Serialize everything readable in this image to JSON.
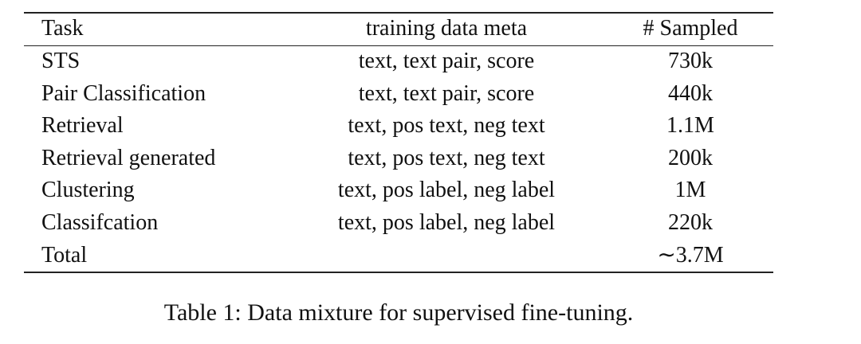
{
  "table": {
    "headers": [
      "Task",
      "training data meta",
      "# Sampled"
    ],
    "rows": [
      [
        "STS",
        "text, text pair, score",
        "730k"
      ],
      [
        "Pair Classification",
        "text, text pair, score",
        "440k"
      ],
      [
        "Retrieval",
        "text, pos text, neg text",
        "1.1M"
      ],
      [
        "Retrieval generated",
        "text, pos text, neg text",
        "200k"
      ],
      [
        "Clustering",
        "text, pos label, neg label",
        "1M"
      ],
      [
        "Classifcation",
        "text, pos label, neg label",
        "220k"
      ],
      [
        "Total",
        "",
        "∼3.7M"
      ]
    ]
  },
  "caption": "Table 1: Data mixture for supervised fine-tuning."
}
